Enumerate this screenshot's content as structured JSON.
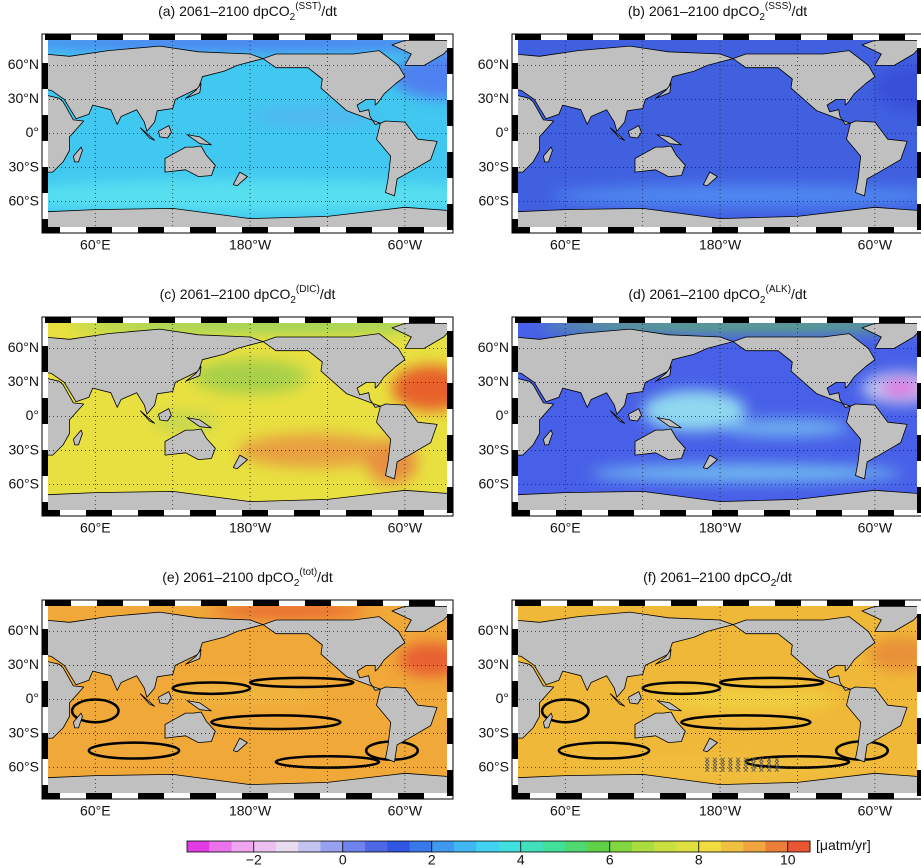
{
  "panels": [
    {
      "title": {
        "prefix": "(a) 2061–2100 dpCO",
        "sub": "2",
        "sup": "(SST)",
        "suffix": "/dt"
      }
    },
    {
      "title": {
        "prefix": "(b) 2061–2100 dpCO",
        "sub": "2",
        "sup": "(SSS)",
        "suffix": "/dt"
      }
    },
    {
      "title": {
        "prefix": "(c) 2061–2100 dpCO",
        "sub": "2",
        "sup": "(DIC)",
        "suffix": "/dt"
      }
    },
    {
      "title": {
        "prefix": "(d) 2061–2100 dpCO",
        "sub": "2",
        "sup": "(ALK)",
        "suffix": "/dt"
      }
    },
    {
      "title": {
        "prefix": "(e) 2061–2100 dpCO",
        "sub": "2",
        "sup": "(tot)",
        "suffix": "/dt"
      }
    },
    {
      "title": {
        "prefix": "(f) 2061–2100 dpCO",
        "sub": "2",
        "suffix": "/dt"
      }
    }
  ],
  "map_axes": {
    "yticks": [
      "60°N",
      "30°N",
      "0°",
      "30°S",
      "60°S"
    ],
    "xticks": [
      "60°E",
      "180°W",
      "60°W"
    ]
  },
  "colorbar": {
    "lim": [
      -3.5,
      10.5
    ],
    "ticks": [
      {
        "value": -2,
        "label": "−2"
      },
      0,
      2,
      4,
      6,
      8,
      10
    ],
    "unit": "[μatm/yr]",
    "colors": [
      "#e020e0",
      "#f0a0f0",
      "#e8e0f0",
      "#8090f0",
      "#3050e0",
      "#40a0f0",
      "#40e0f0",
      "#40e0a0",
      "#60d040",
      "#c0e040",
      "#f0e040",
      "#f0a040",
      "#e84030"
    ]
  }
}
